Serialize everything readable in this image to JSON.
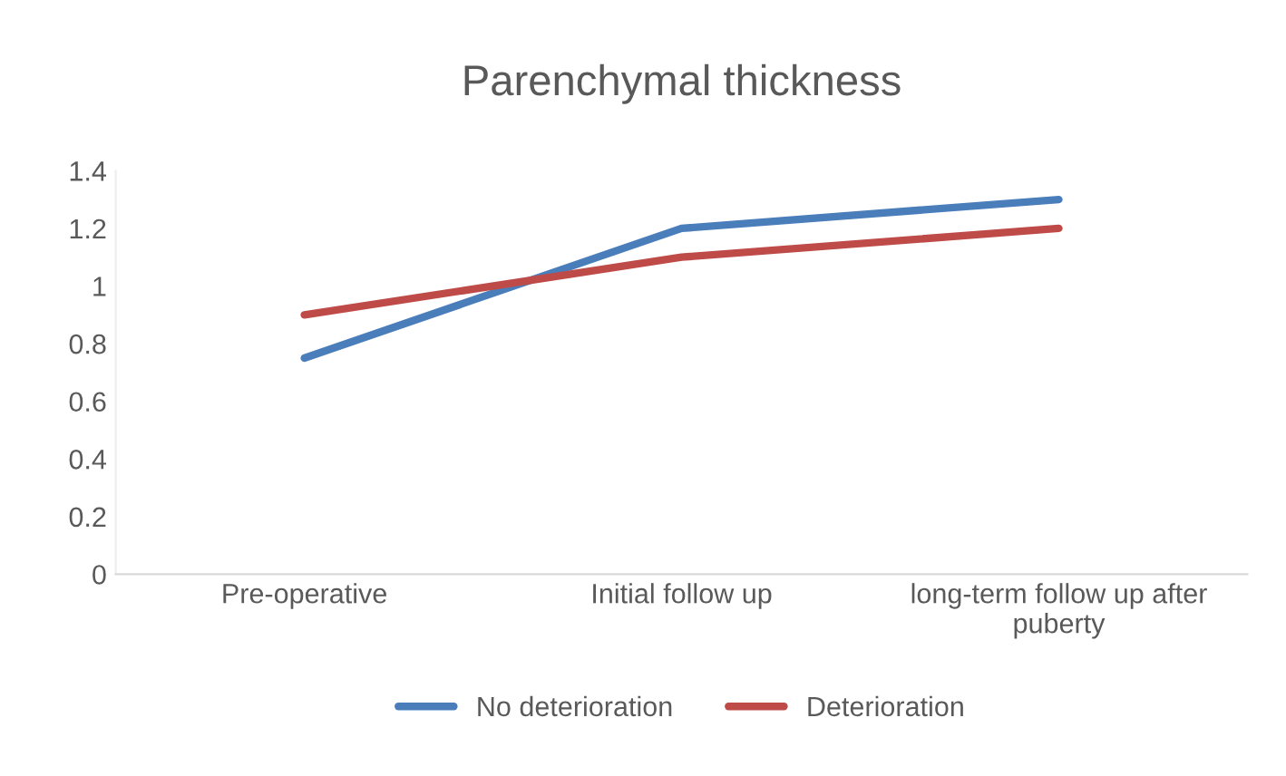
{
  "chart_data": {
    "type": "line",
    "title": "Parenchymal thickness",
    "categories": [
      "Pre-operative",
      "Initial follow up",
      "long-term follow up after\npuberty"
    ],
    "series": [
      {
        "name": "No deterioration",
        "color": "#4a7ebb",
        "values": [
          0.75,
          1.2,
          1.3
        ]
      },
      {
        "name": "Deterioration",
        "color": "#be4b48",
        "values": [
          0.9,
          1.1,
          1.2
        ]
      }
    ],
    "ylim": [
      0,
      1.4
    ],
    "yticks": [
      0,
      0.2,
      0.4,
      0.6,
      0.8,
      1,
      1.2,
      1.4
    ],
    "grid": false,
    "legend": "bottom",
    "marker": "none",
    "line_style": "solid"
  }
}
